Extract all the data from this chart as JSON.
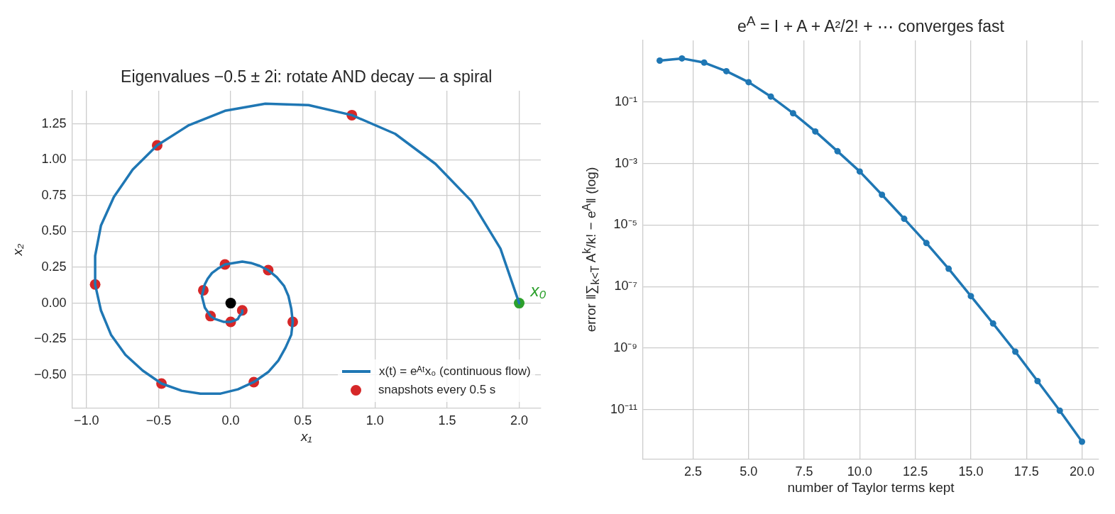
{
  "chart_data": [
    {
      "type": "scatter",
      "title": "Eigenvalues −0.5 ± 2i: rotate AND decay — a spiral",
      "xlabel": "x₁",
      "ylabel": "x₂",
      "xlim": [
        -1.1,
        2.15
      ],
      "ylim": [
        -0.73,
        1.48
      ],
      "xticks": [
        {
          "value": -1,
          "label": "−1.0"
        },
        {
          "value": -0.5,
          "label": "−0.5"
        },
        {
          "value": 0,
          "label": "0.0"
        },
        0.5,
        {
          "value": 1,
          "label": "1.0"
        },
        1.5,
        {
          "value": 2,
          "label": "2.0"
        }
      ],
      "yticks": [
        {
          "value": -0.5,
          "label": "−0.50"
        },
        {
          "value": -0.25,
          "label": "−0.25"
        },
        {
          "value": 0,
          "label": "0.00"
        },
        0.25,
        {
          "value": 0.5,
          "label": "0.50"
        },
        0.75,
        {
          "value": 1,
          "label": "1.00"
        },
        1.25
      ],
      "grid": true,
      "legend": "bottom right",
      "marker": "circle",
      "series": [
        {
          "name": "x(t) = eᴬᵗx₀ (continuous flow)",
          "type": "line",
          "marker": "none",
          "color": "#1f77b4",
          "x": [
            2.0,
            1.87,
            1.67,
            1.42,
            1.14,
            0.84,
            0.54,
            0.24,
            -0.04,
            -0.29,
            -0.51,
            -0.68,
            -0.81,
            -0.9,
            -0.94,
            -0.94,
            -0.9,
            -0.83,
            -0.73,
            -0.61,
            -0.48,
            -0.34,
            -0.21,
            -0.07,
            0.05,
            0.16,
            0.26,
            0.33,
            0.38,
            0.42,
            0.43,
            0.42,
            0.4,
            0.37,
            0.32,
            0.26,
            0.2,
            0.14,
            0.08,
            0.02,
            -0.04,
            -0.09,
            -0.13,
            -0.16,
            -0.18,
            -0.19,
            -0.2,
            -0.19,
            -0.18,
            -0.16,
            -0.14,
            -0.11,
            -0.08,
            -0.05,
            -0.03,
            0.0,
            0.03,
            0.05,
            0.06,
            0.08,
            0.08
          ],
          "values": [
            0.0,
            0.38,
            0.71,
            0.97,
            1.18,
            1.31,
            1.38,
            1.39,
            1.34,
            1.24,
            1.1,
            0.93,
            0.74,
            0.54,
            0.33,
            0.13,
            -0.05,
            -0.22,
            -0.36,
            -0.47,
            -0.56,
            -0.61,
            -0.63,
            -0.63,
            -0.6,
            -0.55,
            -0.48,
            -0.4,
            -0.31,
            -0.22,
            -0.13,
            -0.04,
            0.05,
            0.12,
            0.18,
            0.23,
            0.26,
            0.28,
            0.29,
            0.28,
            0.27,
            0.24,
            0.21,
            0.17,
            0.13,
            0.09,
            0.05,
            0.01,
            -0.03,
            -0.06,
            -0.09,
            -0.11,
            -0.12,
            -0.13,
            -0.13,
            -0.13,
            -0.12,
            -0.11,
            -0.09,
            -0.07,
            -0.05
          ]
        },
        {
          "name": "snapshots every 0.5 s",
          "type": "scatter",
          "color": "#d62728",
          "x": [
            0.84,
            -0.51,
            -0.94,
            -0.48,
            0.16,
            0.43,
            0.26,
            -0.04,
            -0.19,
            -0.14,
            0.0,
            0.08
          ],
          "values": [
            1.31,
            1.1,
            0.13,
            -0.56,
            -0.55,
            -0.13,
            0.23,
            0.27,
            0.09,
            -0.09,
            -0.13,
            -0.05
          ]
        },
        {
          "type": "scatter",
          "color": "#2ca02c",
          "x": [
            2
          ],
          "values": [
            0
          ]
        },
        {
          "type": "scatter",
          "color": "#000000",
          "x": [
            0
          ],
          "values": [
            0
          ]
        }
      ],
      "annotations": [
        {
          "text": "x₀",
          "x": 2,
          "y": 0
        }
      ]
    },
    {
      "type": "line",
      "title": "e$^{A}$ = I + A + A²/2! + ⋯ converges fast",
      "xlabel": "number of Taylor terms kept",
      "ylabel": "error ‖∑$_{k<T}$ A$^{k}$/k! − e$^{A}$‖ (log)",
      "log": "y",
      "xlim": [
        0.25,
        20.75
      ],
      "ylim": [
        2.5e-13,
        10
      ],
      "xticks": [
        2.5,
        {
          "value": 5,
          "label": "5.0"
        },
        7.5,
        {
          "value": 10,
          "label": "10.0"
        },
        12.5,
        {
          "value": 15,
          "label": "15.0"
        },
        17.5,
        {
          "value": 20,
          "label": "20.0"
        }
      ],
      "yticks": [
        {
          "value": 1e-11,
          "label": "10⁻¹¹"
        },
        {
          "value": 1e-09,
          "label": "10⁻⁹"
        },
        {
          "value": 1e-07,
          "label": "10⁻⁷"
        },
        {
          "value": 1e-05,
          "label": "10⁻⁵"
        },
        {
          "value": 0.001,
          "label": "10⁻³"
        },
        {
          "value": 0.1,
          "label": "10⁻¹"
        }
      ],
      "grid": true,
      "marker": "circle",
      "color": "#1f77b4",
      "x": [
        1,
        2,
        3,
        4,
        5,
        6,
        7,
        8,
        9,
        10,
        11,
        12,
        13,
        14,
        15,
        16,
        17,
        18,
        19,
        20
      ],
      "values": [
        2.2,
        2.6,
        1.9,
        1.0,
        0.44,
        0.15,
        0.043,
        0.011,
        0.0025,
        0.00055,
        9.6e-05,
        1.6e-05,
        2.6e-06,
        3.8e-07,
        4.9e-08,
        6.3e-09,
        7.7e-10,
        8.5e-11,
        9.3e-12,
        9.1e-13
      ]
    }
  ]
}
